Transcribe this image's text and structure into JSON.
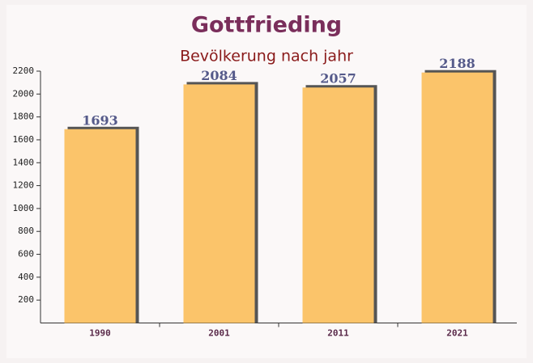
{
  "chart_data": {
    "type": "bar",
    "title": "Gottfrieding",
    "subtitle": "Bevölkerung nach jahr",
    "categories": [
      "1990",
      "2001",
      "2011",
      "2021"
    ],
    "values": [
      1693,
      2084,
      2057,
      2188
    ],
    "color": "#fbc46a",
    "ylim": [
      0,
      2200
    ],
    "yticks": [
      200,
      400,
      600,
      800,
      1000,
      1200,
      1400,
      1600,
      1800,
      2000,
      2200
    ]
  }
}
